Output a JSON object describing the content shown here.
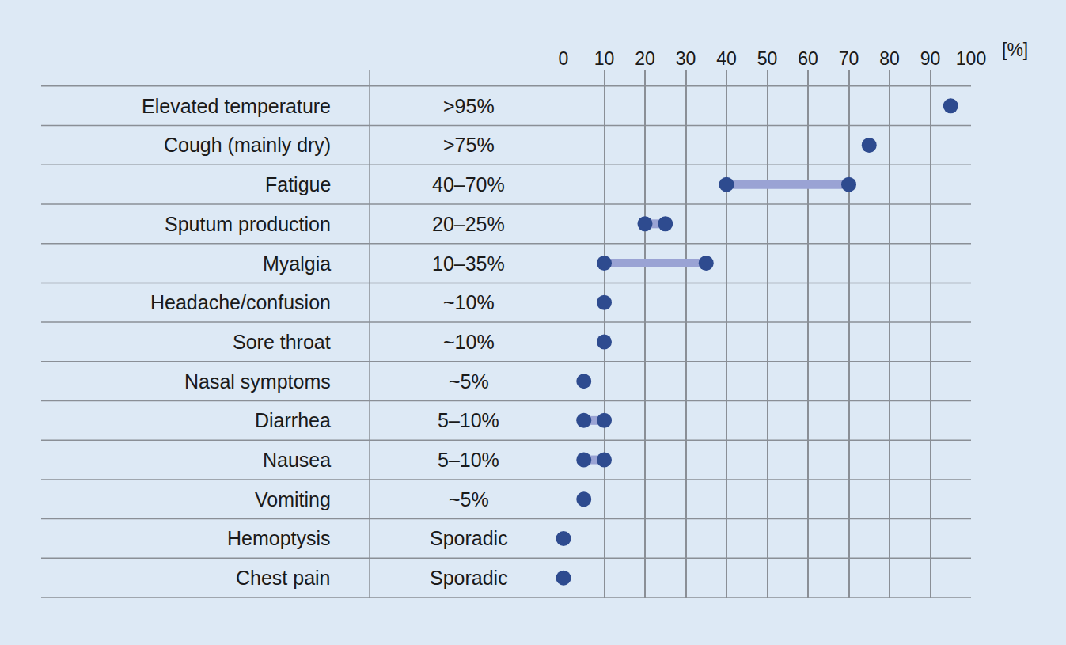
{
  "chart_data": {
    "type": "dumbbell",
    "orientation": "horizontal",
    "categories": [
      "Elevated temperature",
      "Cough (mainly dry)",
      "Fatigue",
      "Sputum production",
      "Myalgia",
      "Headache/confusion",
      "Sore throat",
      "Nasal symptoms",
      "Diarrhea",
      "Nausea",
      "Vomiting",
      "Hemoptysis",
      "Chest pain"
    ],
    "values": [
      [
        95
      ],
      [
        75
      ],
      [
        40,
        70
      ],
      [
        20,
        25
      ],
      [
        10,
        35
      ],
      [
        10
      ],
      [
        10
      ],
      [
        5
      ],
      [
        5,
        10
      ],
      [
        5,
        10
      ],
      [
        5
      ],
      [
        0
      ],
      [
        0
      ]
    ],
    "value_labels": [
      ">95%",
      ">75%",
      "40–70%",
      "20–25%",
      "10–35%",
      "~10%",
      "~10%",
      "~5%",
      "5–10%",
      "5–10%",
      "~5%",
      "Sporadic",
      "Sporadic"
    ],
    "xlabel": "[%]",
    "xlim": [
      0,
      100
    ],
    "xticks": [
      0,
      10,
      20,
      30,
      40,
      50,
      60,
      70,
      80,
      90,
      100
    ],
    "grid": true,
    "color": "#2e4b8f",
    "marker": "circle"
  }
}
